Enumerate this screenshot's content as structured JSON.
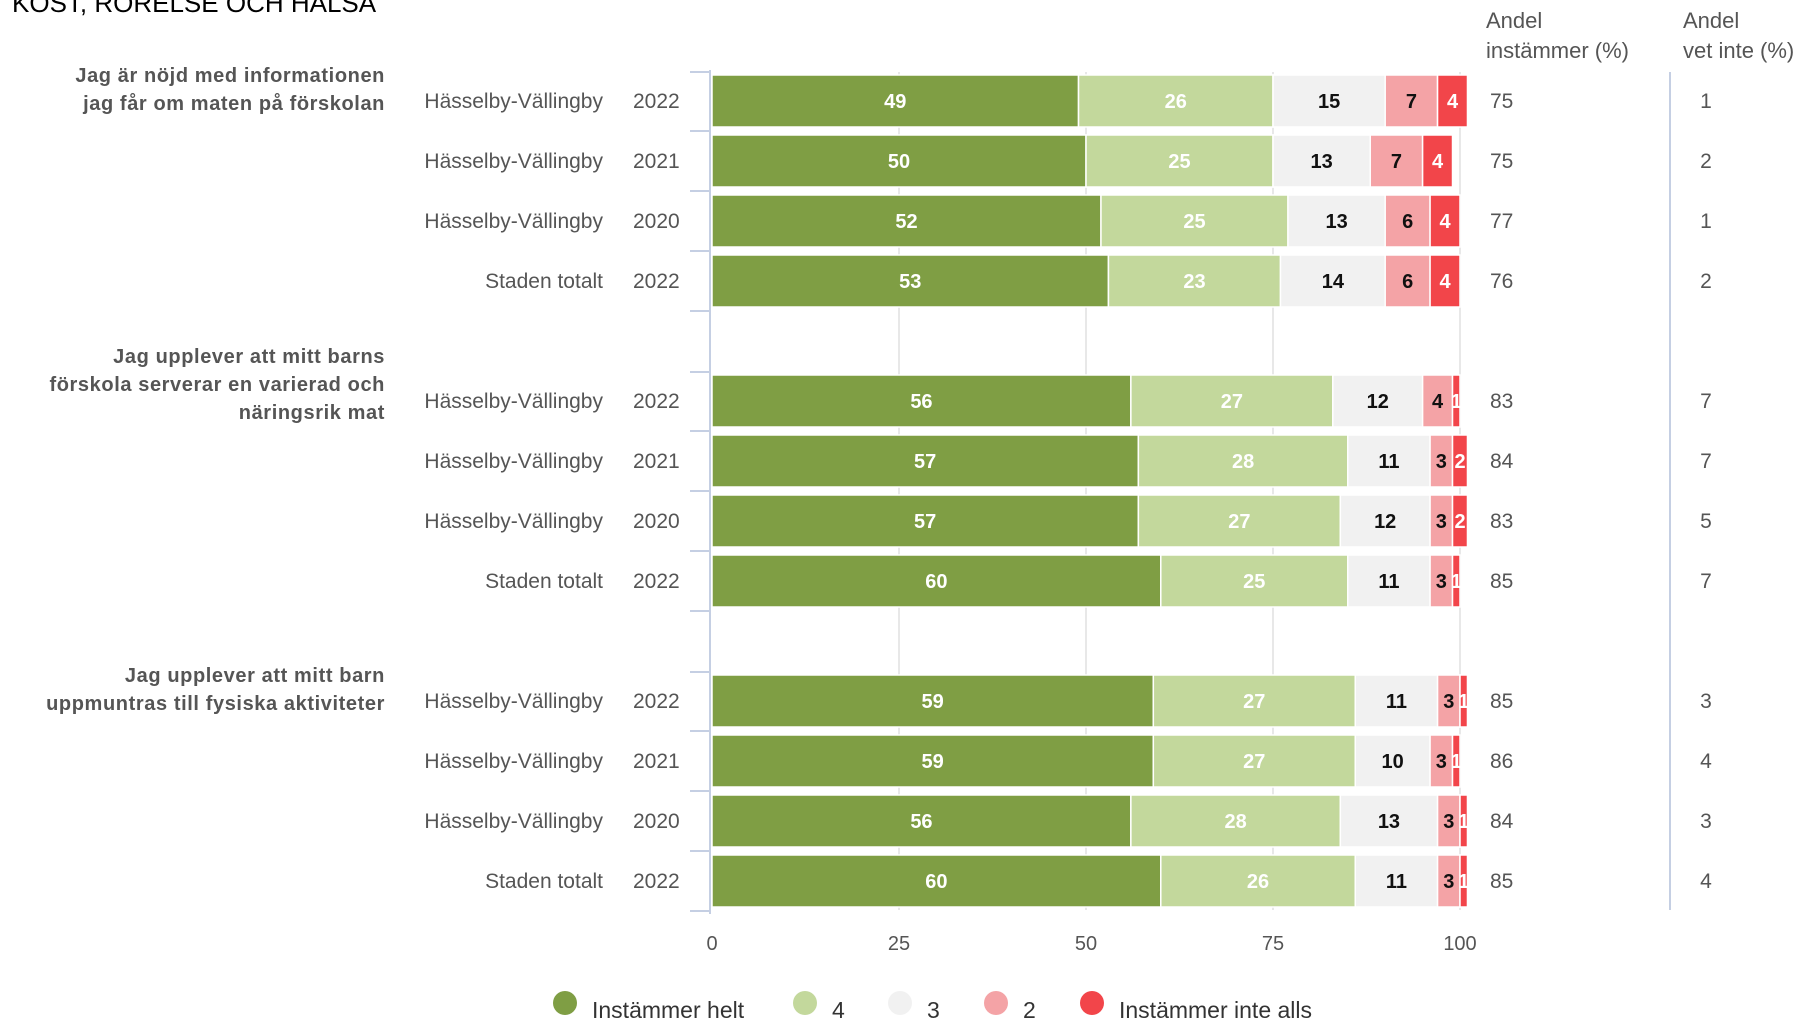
{
  "chart_data": {
    "type": "bar",
    "stacked": true,
    "orientation": "horizontal",
    "title": "KOST, RÖRELSE OCH HÄLSA",
    "xlim": [
      0,
      100
    ],
    "xticks": [
      0,
      25,
      50,
      75,
      100
    ],
    "grid": true,
    "legend_position": "bottom",
    "series": [
      {
        "name": "Instämmer helt",
        "color": "#7f9e44"
      },
      {
        "name": "4",
        "color": "#c3d89c"
      },
      {
        "name": "3",
        "color": "#f1f1f1"
      },
      {
        "name": "2",
        "color": "#f4a3a6"
      },
      {
        "name": "Instämmer inte alls",
        "color": "#f2454a"
      }
    ],
    "extra_columns": [
      {
        "header_line1": "Andel",
        "header_line2": "instämmer (%)"
      },
      {
        "header_line1": "Andel",
        "header_line2": "vet inte (%)"
      }
    ],
    "groups": [
      {
        "question_lines": [
          "Jag är nöjd med informationen",
          "jag får om maten på förskolan"
        ],
        "rows": [
          {
            "unit": "Hässelby-Vällingby",
            "year": "2022",
            "values": [
              49,
              26,
              15,
              7,
              4
            ],
            "agree": "75",
            "dont_know": "1"
          },
          {
            "unit": "Hässelby-Vällingby",
            "year": "2021",
            "values": [
              50,
              25,
              13,
              7,
              4
            ],
            "agree": "75",
            "dont_know": "2"
          },
          {
            "unit": "Hässelby-Vällingby",
            "year": "2020",
            "values": [
              52,
              25,
              13,
              6,
              4
            ],
            "agree": "77",
            "dont_know": "1"
          },
          {
            "unit": "Staden totalt",
            "year": "2022",
            "values": [
              53,
              23,
              14,
              6,
              4
            ],
            "agree": "76",
            "dont_know": "2"
          }
        ]
      },
      {
        "question_lines": [
          "Jag upplever att mitt barns",
          "förskola serverar en varierad och",
          "näringsrik mat"
        ],
        "rows": [
          {
            "unit": "Hässelby-Vällingby",
            "year": "2022",
            "values": [
              56,
              27,
              12,
              4,
              1
            ],
            "agree": "83",
            "dont_know": "7"
          },
          {
            "unit": "Hässelby-Vällingby",
            "year": "2021",
            "values": [
              57,
              28,
              11,
              3,
              2
            ],
            "agree": "84",
            "dont_know": "7"
          },
          {
            "unit": "Hässelby-Vällingby",
            "year": "2020",
            "values": [
              57,
              27,
              12,
              3,
              2
            ],
            "agree": "83",
            "dont_know": "5"
          },
          {
            "unit": "Staden totalt",
            "year": "2022",
            "values": [
              60,
              25,
              11,
              3,
              1
            ],
            "agree": "85",
            "dont_know": "7"
          }
        ]
      },
      {
        "question_lines": [
          "Jag upplever att mitt barn",
          "uppmuntras till fysiska aktiviteter"
        ],
        "rows": [
          {
            "unit": "Hässelby-Vällingby",
            "year": "2022",
            "values": [
              59,
              27,
              11,
              3,
              1
            ],
            "agree": "85",
            "dont_know": "3"
          },
          {
            "unit": "Hässelby-Vällingby",
            "year": "2021",
            "values": [
              59,
              27,
              10,
              3,
              1
            ],
            "agree": "86",
            "dont_know": "4"
          },
          {
            "unit": "Hässelby-Vällingby",
            "year": "2020",
            "values": [
              56,
              28,
              13,
              3,
              1
            ],
            "agree": "84",
            "dont_know": "3"
          },
          {
            "unit": "Staden totalt",
            "year": "2022",
            "values": [
              60,
              26,
              11,
              3,
              1
            ],
            "agree": "85",
            "dont_know": "4"
          }
        ]
      }
    ]
  }
}
